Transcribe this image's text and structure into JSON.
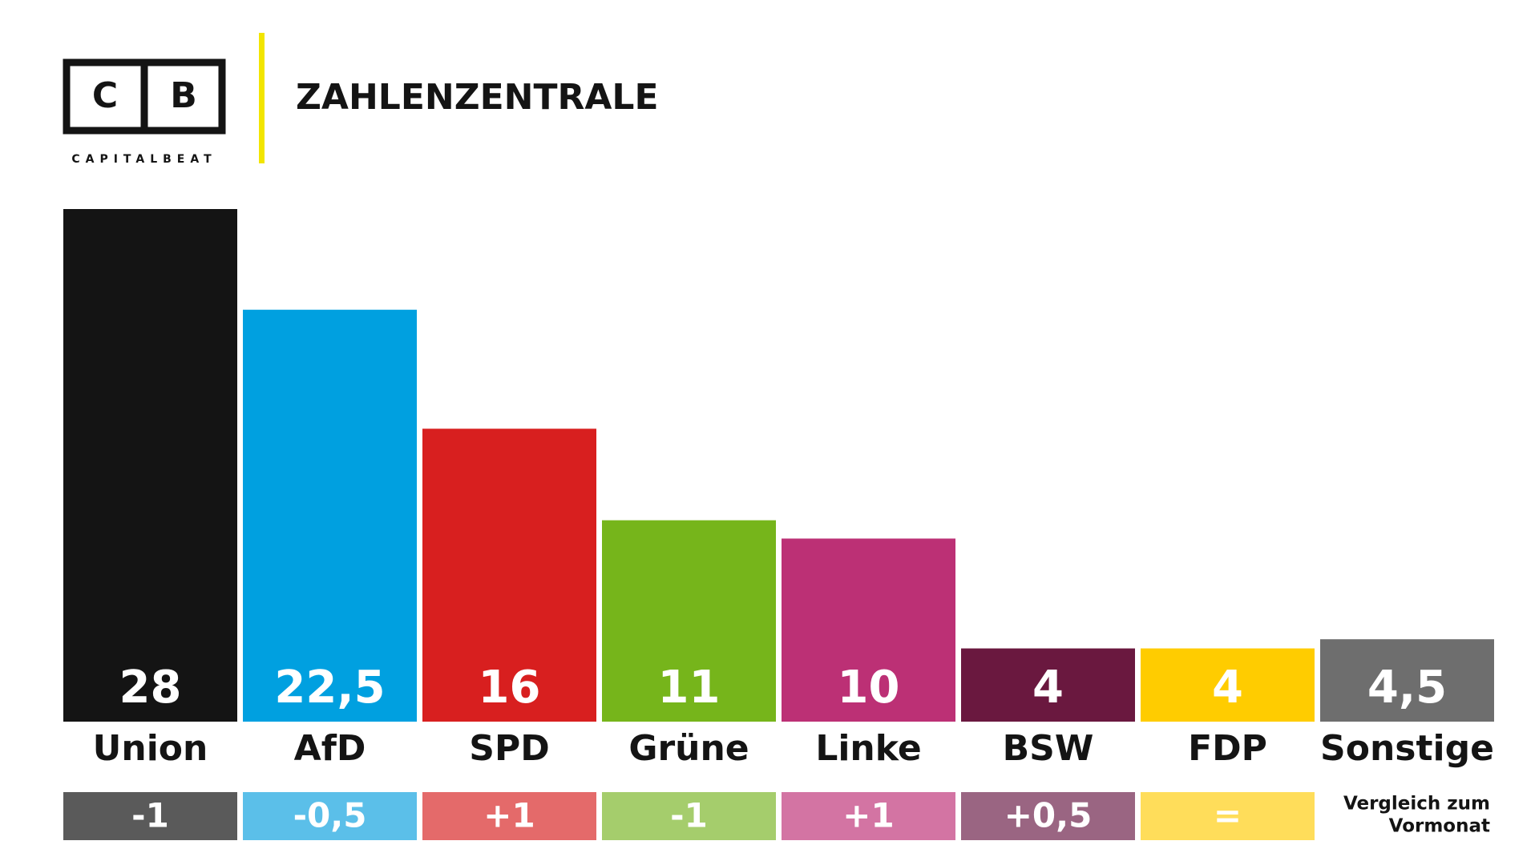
{
  "header": {
    "logo_letters": [
      "C",
      "B"
    ],
    "logo_name": "CAPITALBEAT",
    "title": "ZAHLENZENTRALE"
  },
  "chart_data": {
    "type": "bar",
    "categories": [
      "Union",
      "AfD",
      "SPD",
      "Grüne",
      "Linke",
      "BSW",
      "FDP",
      "Sonstige"
    ],
    "values": [
      28,
      22.5,
      16,
      11,
      10,
      4,
      4,
      4.5
    ],
    "value_labels": [
      "28",
      "22,5",
      "16",
      "11",
      "10",
      "4",
      "4",
      "4,5"
    ],
    "colors": [
      "#141414",
      "#00a0e0",
      "#d81f1f",
      "#76b51b",
      "#bc3075",
      "#6a183f",
      "#ffcc00",
      "#6e6e6e"
    ],
    "ylim": [
      0,
      28
    ],
    "changes": [
      "-1",
      "-0,5",
      "+1",
      "-1",
      "+1",
      "+0,5",
      "=",
      null
    ],
    "change_colors": [
      "#5a5a5a",
      "#5bbfe9",
      "#e46a6a",
      "#a5cd6c",
      "#d374a3",
      "#9a6582",
      "#ffdd5a",
      null
    ],
    "change_note": [
      "Vergleich zum",
      "Vormonat"
    ]
  }
}
